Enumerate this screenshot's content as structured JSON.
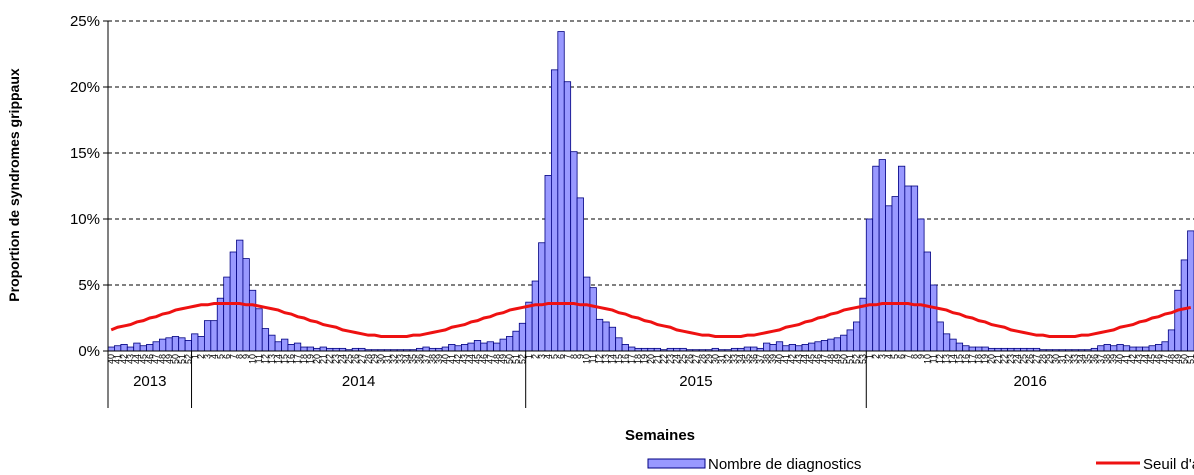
{
  "chart_data": {
    "type": "bar",
    "y_label": "Proportion de syndromes grippaux",
    "x_label": "Semaines",
    "years": [
      "2013",
      "2014",
      "2015",
      "2016"
    ],
    "categories": [
      "40",
      "41",
      "42",
      "43",
      "44",
      "45",
      "46",
      "47",
      "48",
      "49",
      "50",
      "51",
      "52",
      "1",
      "2",
      "3",
      "4",
      "5",
      "6",
      "7",
      "8",
      "9",
      "10",
      "11",
      "12",
      "13",
      "14",
      "15",
      "16",
      "17",
      "18",
      "19",
      "20",
      "21",
      "22",
      "23",
      "24",
      "25",
      "26",
      "27",
      "28",
      "29",
      "30",
      "31",
      "32",
      "33",
      "34",
      "35",
      "36",
      "37",
      "38",
      "39",
      "40",
      "41",
      "42",
      "43",
      "44",
      "45",
      "46",
      "47",
      "48",
      "49",
      "50",
      "51",
      "52",
      "1",
      "2",
      "3",
      "4",
      "5",
      "6",
      "7",
      "8",
      "9",
      "10",
      "11",
      "12",
      "13",
      "14",
      "15",
      "16",
      "17",
      "18",
      "19",
      "20",
      "21",
      "22",
      "23",
      "24",
      "25",
      "26",
      "27",
      "28",
      "29",
      "30",
      "31",
      "32",
      "33",
      "34",
      "35",
      "36",
      "37",
      "38",
      "39",
      "40",
      "41",
      "42",
      "43",
      "44",
      "45",
      "46",
      "47",
      "48",
      "49",
      "50",
      "51",
      "52",
      "53",
      "1",
      "2",
      "3",
      "4",
      "5",
      "6",
      "7",
      "8",
      "9",
      "10",
      "11",
      "12",
      "13",
      "14",
      "15",
      "16",
      "17",
      "18",
      "19",
      "20",
      "21",
      "22",
      "23",
      "24",
      "25",
      "26",
      "27",
      "28",
      "29",
      "30",
      "31",
      "32",
      "33",
      "34",
      "35",
      "36",
      "37",
      "38",
      "39",
      "40",
      "41",
      "42",
      "43",
      "44",
      "45",
      "46",
      "47",
      "48",
      "49",
      "50",
      "51"
    ],
    "series": [
      {
        "name": "Nombre de diagnostics",
        "type": "bar",
        "color": "#9999ff",
        "edge": "#000080",
        "values": [
          0.3,
          0.4,
          0.5,
          0.3,
          0.6,
          0.4,
          0.5,
          0.7,
          0.9,
          1.0,
          1.1,
          1.0,
          0.8,
          1.3,
          1.1,
          2.3,
          2.3,
          4.0,
          5.6,
          7.5,
          8.4,
          7.0,
          4.6,
          3.2,
          1.7,
          1.2,
          0.7,
          0.9,
          0.5,
          0.6,
          0.3,
          0.3,
          0.2,
          0.3,
          0.2,
          0.2,
          0.2,
          0.1,
          0.2,
          0.2,
          0.1,
          0.1,
          0.1,
          0.1,
          0.1,
          0.1,
          0.1,
          0.1,
          0.2,
          0.3,
          0.2,
          0.2,
          0.3,
          0.5,
          0.4,
          0.5,
          0.6,
          0.8,
          0.6,
          0.7,
          0.6,
          0.9,
          1.1,
          1.5,
          2.1,
          3.7,
          5.3,
          8.2,
          13.3,
          21.3,
          24.2,
          20.4,
          15.1,
          11.6,
          5.6,
          4.8,
          2.4,
          2.2,
          1.8,
          1.0,
          0.5,
          0.3,
          0.2,
          0.2,
          0.2,
          0.2,
          0.1,
          0.2,
          0.2,
          0.2,
          0.1,
          0.1,
          0.1,
          0.1,
          0.2,
          0.1,
          0.1,
          0.2,
          0.2,
          0.3,
          0.3,
          0.2,
          0.6,
          0.5,
          0.7,
          0.4,
          0.5,
          0.4,
          0.5,
          0.6,
          0.7,
          0.8,
          0.9,
          1.0,
          1.2,
          1.6,
          2.2,
          4.0,
          10.0,
          14.0,
          14.5,
          11.0,
          11.7,
          14.0,
          12.5,
          12.5,
          10.0,
          7.5,
          5.0,
          2.2,
          1.3,
          0.9,
          0.6,
          0.4,
          0.3,
          0.3,
          0.3,
          0.2,
          0.2,
          0.2,
          0.2,
          0.2,
          0.2,
          0.2,
          0.2,
          0.1,
          0.1,
          0.1,
          0.1,
          0.1,
          0.1,
          0.1,
          0.1,
          0.2,
          0.4,
          0.5,
          0.4,
          0.5,
          0.4,
          0.3,
          0.3,
          0.3,
          0.4,
          0.5,
          0.7,
          1.6,
          4.6,
          6.9,
          9.1
        ]
      },
      {
        "name": "Seuil d'alerte",
        "type": "line",
        "color": "#ee1111",
        "values": [
          1.6,
          1.8,
          1.9,
          2.0,
          2.2,
          2.3,
          2.5,
          2.6,
          2.8,
          2.9,
          3.1,
          3.2,
          3.3,
          3.4,
          3.5,
          3.5,
          3.6,
          3.6,
          3.6,
          3.6,
          3.6,
          3.5,
          3.5,
          3.4,
          3.3,
          3.2,
          3.1,
          2.9,
          2.8,
          2.6,
          2.5,
          2.3,
          2.2,
          2.0,
          1.9,
          1.8,
          1.6,
          1.5,
          1.4,
          1.3,
          1.2,
          1.2,
          1.1,
          1.1,
          1.1,
          1.1,
          1.1,
          1.2,
          1.2,
          1.3,
          1.4,
          1.5,
          1.6,
          1.8,
          1.9,
          2.0,
          2.2,
          2.3,
          2.5,
          2.6,
          2.8,
          2.9,
          3.1,
          3.2,
          3.3,
          3.4,
          3.5,
          3.5,
          3.6,
          3.6,
          3.6,
          3.6,
          3.6,
          3.5,
          3.5,
          3.4,
          3.3,
          3.2,
          3.1,
          2.9,
          2.8,
          2.6,
          2.5,
          2.3,
          2.2,
          2.0,
          1.9,
          1.8,
          1.6,
          1.5,
          1.4,
          1.3,
          1.2,
          1.2,
          1.1,
          1.1,
          1.1,
          1.1,
          1.1,
          1.2,
          1.2,
          1.3,
          1.4,
          1.5,
          1.6,
          1.8,
          1.9,
          2.0,
          2.2,
          2.3,
          2.5,
          2.6,
          2.8,
          2.9,
          3.1,
          3.2,
          3.3,
          3.4,
          3.5,
          3.5,
          3.6,
          3.6,
          3.6,
          3.6,
          3.6,
          3.5,
          3.5,
          3.4,
          3.3,
          3.2,
          3.1,
          2.9,
          2.8,
          2.6,
          2.5,
          2.3,
          2.2,
          2.0,
          1.9,
          1.8,
          1.6,
          1.5,
          1.4,
          1.3,
          1.2,
          1.2,
          1.1,
          1.1,
          1.1,
          1.1,
          1.1,
          1.2,
          1.2,
          1.3,
          1.4,
          1.5,
          1.6,
          1.8,
          1.9,
          2.0,
          2.2,
          2.3,
          2.5,
          2.6,
          2.8,
          2.9,
          3.1,
          3.2,
          3.3
        ]
      }
    ],
    "ylim": [
      0,
      25
    ],
    "yticks": [
      {
        "value": 0,
        "label": "0%"
      },
      {
        "value": 5,
        "label": "5%"
      },
      {
        "value": 10,
        "label": "10%"
      },
      {
        "value": 15,
        "label": "15%"
      },
      {
        "value": 20,
        "label": "20%"
      },
      {
        "value": 25,
        "label": "25%"
      }
    ],
    "grid": true,
    "legend": "bottom-right"
  }
}
